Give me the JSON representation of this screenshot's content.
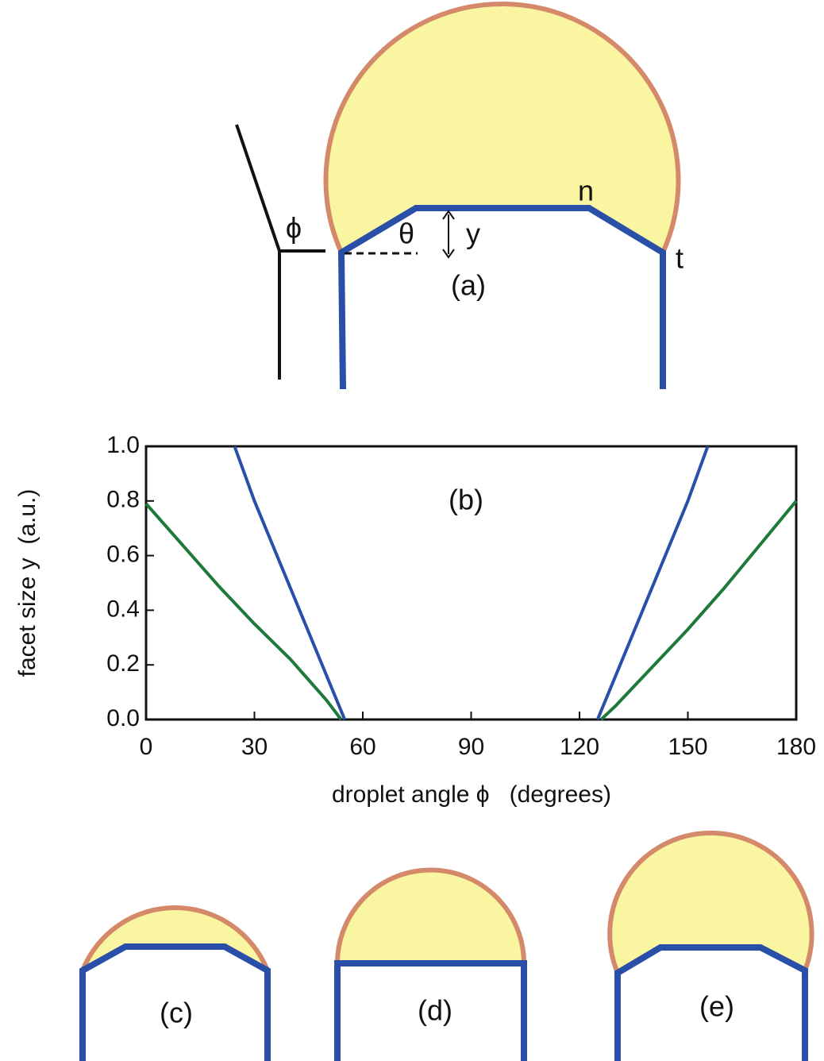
{
  "panel_a": {
    "label": "(a)",
    "angle_phi": "ϕ",
    "angle_theta": "θ",
    "height": "y",
    "facet_n": "n",
    "facet_t": "t"
  },
  "chart_data": {
    "type": "line",
    "annotation": "(b)",
    "xlabel": "droplet angle ϕ   (degrees)",
    "ylabel": "facet size y  (a.u.)",
    "xlim": [
      0,
      180
    ],
    "ylim": [
      0,
      1.0
    ],
    "xticks": [
      0,
      30,
      60,
      90,
      120,
      150,
      180
    ],
    "yticks": [
      {
        "value": 0,
        "label": "0.0"
      },
      {
        "value": 0.2,
        "label": "0.2"
      },
      {
        "value": 0.4,
        "label": "0.4"
      },
      {
        "value": 0.6,
        "label": "0.6"
      },
      {
        "value": 0.8,
        "label": "0.8"
      },
      {
        "value": 1.0,
        "label": "1.0"
      }
    ],
    "series": [
      {
        "color": "#1e7a3a",
        "x": [
          0,
          10,
          20,
          30,
          40,
          50,
          54,
          90,
          126,
          130,
          140,
          150,
          160,
          170,
          180
        ],
        "values": [
          0.79,
          0.64,
          0.49,
          0.35,
          0.22,
          0.07,
          0,
          null,
          0,
          0.05,
          0.19,
          0.33,
          0.48,
          0.64,
          0.8
        ]
      },
      {
        "color": "#2a4fa8",
        "x": [
          24.5,
          30,
          40,
          50,
          55,
          90,
          125,
          130,
          140,
          150,
          155.5
        ],
        "values": [
          1.0,
          0.8,
          0.48,
          0.16,
          0,
          null,
          0,
          0.16,
          0.48,
          0.8,
          1.0
        ]
      }
    ]
  },
  "panels": [
    {
      "label": "(c)"
    },
    {
      "label": "(d)"
    },
    {
      "label": "(e)"
    }
  ]
}
